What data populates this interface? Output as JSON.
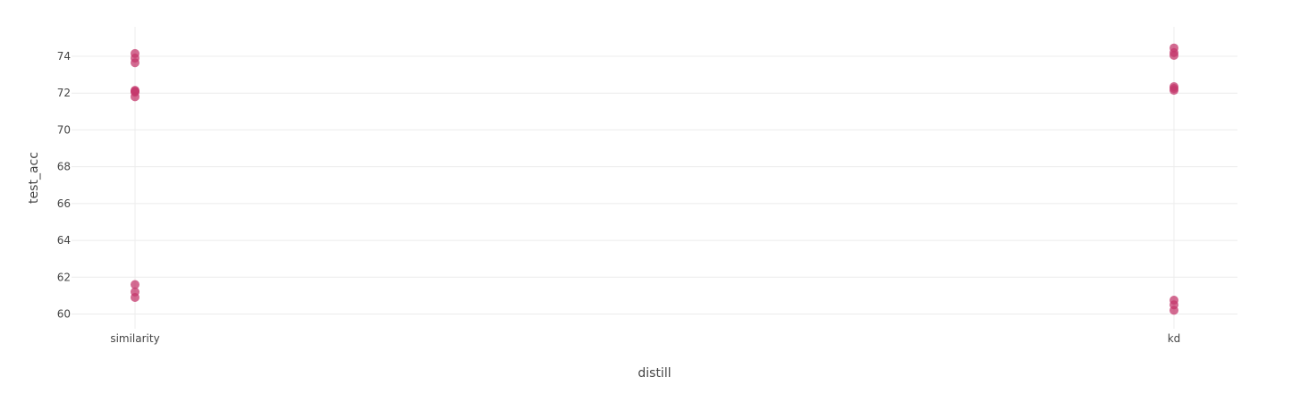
{
  "chart_data": {
    "type": "scatter",
    "title": "",
    "xlabel": "distill",
    "ylabel": "test_acc",
    "categories": [
      "similarity",
      "kd"
    ],
    "ylim": [
      59.2,
      75.6
    ],
    "y_ticks": [
      60,
      62,
      64,
      66,
      68,
      70,
      72,
      74
    ],
    "grid": true,
    "marker_color": "#c4386c",
    "marker_opacity": 0.75,
    "series": [
      {
        "points": [
          {
            "x": "similarity",
            "y": 74.15
          },
          {
            "x": "similarity",
            "y": 73.9
          },
          {
            "x": "similarity",
            "y": 73.65
          },
          {
            "x": "similarity",
            "y": 72.15
          },
          {
            "x": "similarity",
            "y": 72.1
          },
          {
            "x": "similarity",
            "y": 72.05
          },
          {
            "x": "similarity",
            "y": 71.8
          },
          {
            "x": "similarity",
            "y": 61.6
          },
          {
            "x": "similarity",
            "y": 61.2
          },
          {
            "x": "similarity",
            "y": 60.9
          },
          {
            "x": "kd",
            "y": 74.45
          },
          {
            "x": "kd",
            "y": 74.2
          },
          {
            "x": "kd",
            "y": 74.05
          },
          {
            "x": "kd",
            "y": 72.35
          },
          {
            "x": "kd",
            "y": 72.25
          },
          {
            "x": "kd",
            "y": 72.15
          },
          {
            "x": "kd",
            "y": 60.75
          },
          {
            "x": "kd",
            "y": 60.5
          },
          {
            "x": "kd",
            "y": 60.2
          }
        ]
      }
    ]
  }
}
